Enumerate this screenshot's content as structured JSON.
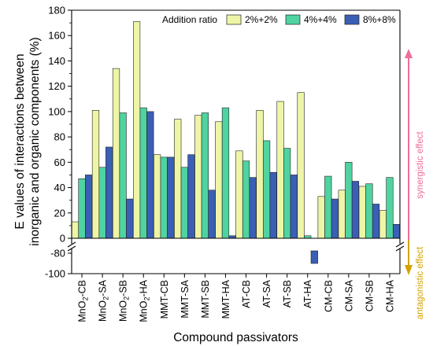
{
  "chart_data": {
    "type": "bar",
    "xlabel": "Compound passivators",
    "ylabel": [
      "E values of interactions between",
      "inorganic and organic components (%)"
    ],
    "categories": [
      [
        "MnO",
        "2",
        "-CB"
      ],
      [
        "MnO",
        "2",
        "-SA"
      ],
      [
        "MnO",
        "2",
        "-SB"
      ],
      [
        "MnO",
        "2",
        "-HA"
      ],
      [
        "MMT-CB"
      ],
      [
        "MMT-SA"
      ],
      [
        "MMT-SB"
      ],
      [
        "MMT-HA"
      ],
      [
        "AT-CB"
      ],
      [
        "AT-SA"
      ],
      [
        "AT-SB"
      ],
      [
        "AT-HA"
      ],
      [
        "CM-CB"
      ],
      [
        "CM-SA"
      ],
      [
        "CM-SB"
      ],
      [
        "CM-HA"
      ]
    ],
    "legend_title": "Addition ratio",
    "legend_position": "top-right",
    "series": [
      {
        "name": "2%+2%",
        "color": "#eef5a6",
        "values": [
          13,
          101,
          134,
          171,
          66,
          94,
          97,
          92,
          69,
          101,
          108,
          115,
          33,
          38,
          41,
          22
        ]
      },
      {
        "name": "4%+4%",
        "color": "#4fd3a0",
        "values": [
          47,
          56,
          99,
          103,
          64,
          56,
          99,
          103,
          61,
          77,
          71,
          2,
          49,
          60,
          43,
          48
        ]
      },
      {
        "name": "8%+8%",
        "color": "#3a5fb5",
        "values": [
          50,
          72,
          31,
          100,
          64,
          66,
          38,
          2,
          48,
          52,
          50,
          -90,
          31,
          45,
          27,
          11
        ]
      }
    ],
    "y_upper": {
      "range": [
        0,
        180
      ],
      "ticks": [
        0,
        20,
        40,
        60,
        80,
        100,
        120,
        140,
        160,
        180
      ]
    },
    "y_lower": {
      "range": [
        -100,
        -80
      ],
      "ticks": [
        -80,
        -100
      ]
    },
    "axis_break": true,
    "annotations": {
      "top": "synergistic effect",
      "bottom": "antagonistic effect"
    },
    "colors": {
      "synergistic": "#f06d96",
      "antagonistic": "#d4a300"
    }
  }
}
